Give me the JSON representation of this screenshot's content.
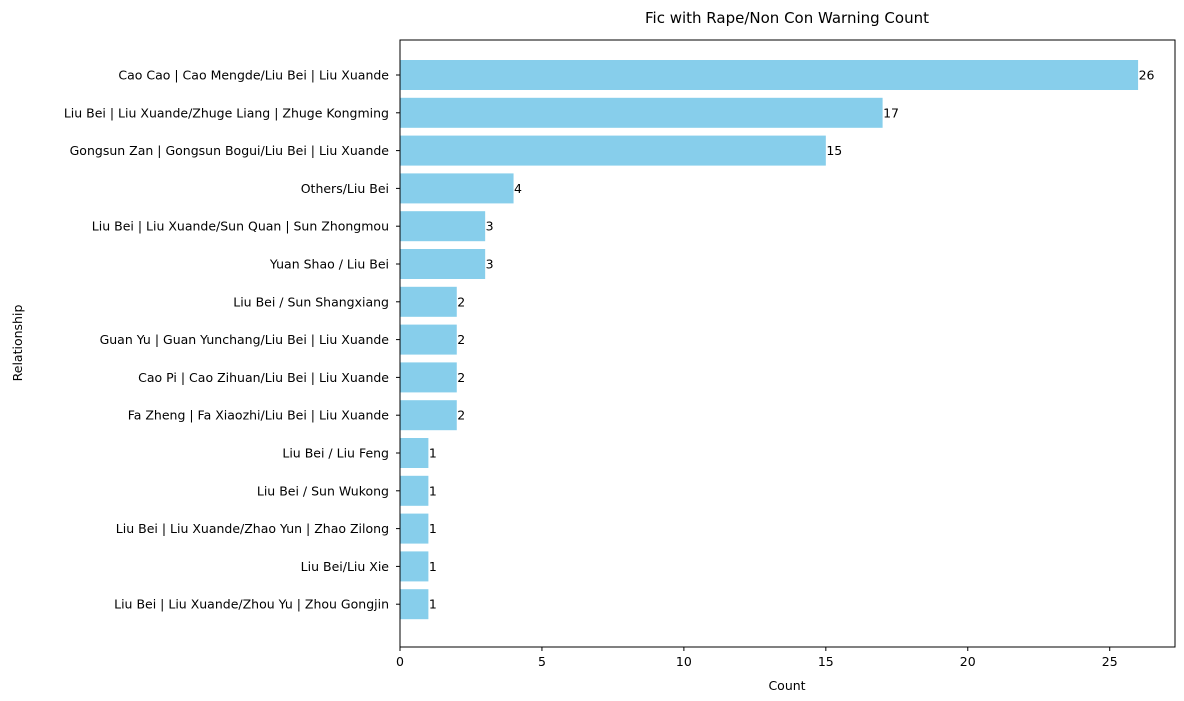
{
  "chart_data": {
    "type": "bar",
    "orientation": "horizontal",
    "title": "Fic with Rape/Non Con Warning Count",
    "xlabel": "Count",
    "ylabel": "Relationship",
    "xlim": [
      0,
      27.3
    ],
    "xticks": [
      0,
      5,
      10,
      15,
      20,
      25
    ],
    "bar_color": "#87ceeb",
    "grid": false,
    "categories": [
      "Cao Cao | Cao Mengde/Liu Bei | Liu Xuande",
      "Liu Bei | Liu Xuande/Zhuge Liang | Zhuge Kongming",
      "Gongsun Zan | Gongsun Bogui/Liu Bei | Liu Xuande",
      "Others/Liu Bei",
      "Liu Bei | Liu Xuande/Sun Quan | Sun Zhongmou",
      "Yuan Shao / Liu Bei",
      "Liu Bei / Sun Shangxiang",
      "Guan Yu | Guan Yunchang/Liu Bei | Liu Xuande",
      "Cao Pi | Cao Zihuan/Liu Bei | Liu Xuande",
      "Fa Zheng | Fa Xiaozhi/Liu Bei | Liu Xuande",
      "Liu Bei / Liu Feng",
      "Liu Bei / Sun Wukong",
      "Liu Bei | Liu Xuande/Zhao Yun | Zhao Zilong",
      "Liu Bei/Liu Xie",
      "Liu Bei | Liu Xuande/Zhou Yu | Zhou Gongjin"
    ],
    "values": [
      26,
      17,
      15,
      4,
      3,
      3,
      2,
      2,
      2,
      2,
      1,
      1,
      1,
      1,
      1
    ]
  }
}
